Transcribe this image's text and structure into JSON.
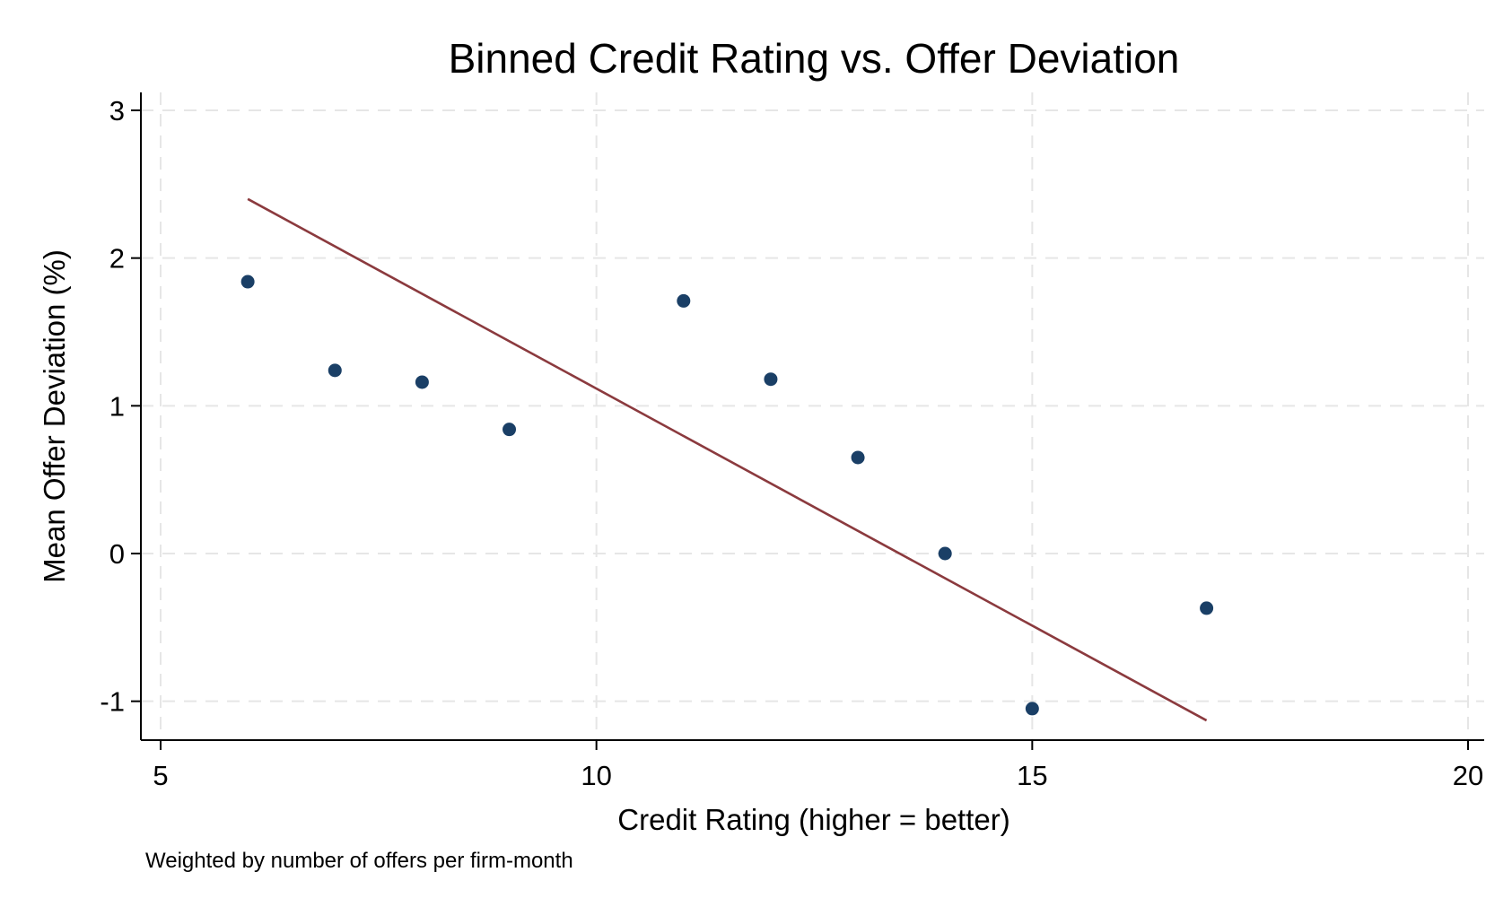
{
  "chart_data": {
    "type": "scatter",
    "title": "Binned Credit Rating vs. Offer Deviation",
    "xlabel": "Credit Rating (higher = better)",
    "ylabel": "Mean Offer Deviation (%)",
    "note": "Weighted by number of offers per firm-month",
    "xlim": [
      4.8,
      20.2
    ],
    "ylim": [
      -1.25,
      3.1
    ],
    "xticks": [
      5,
      10,
      15,
      20
    ],
    "xtick_labels": [
      "5",
      "10",
      "15",
      "20"
    ],
    "yticks": [
      -1,
      0,
      1,
      2,
      3
    ],
    "ytick_labels": [
      "-1",
      "0",
      "1",
      "2",
      "3"
    ],
    "grid": true,
    "series": [
      {
        "type": "scatter",
        "color": "#1a3f66",
        "x": [
          6,
          7,
          8,
          9,
          11,
          12,
          13,
          14,
          15,
          17
        ],
        "y": [
          1.84,
          1.24,
          1.16,
          0.84,
          1.71,
          1.18,
          0.65,
          0.0,
          -1.05,
          -0.37
        ]
      },
      {
        "type": "line",
        "color": "#8b3a3e",
        "x": [
          6,
          17
        ],
        "y": [
          2.4,
          -1.13
        ]
      }
    ]
  }
}
